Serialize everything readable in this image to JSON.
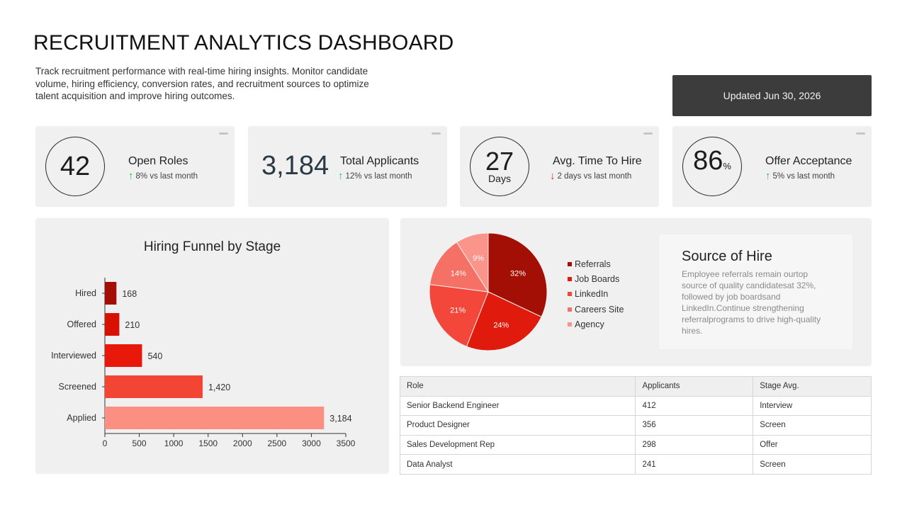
{
  "header": {
    "title": "RECRUITMENT ANALYTICS DASHBOARD",
    "subtitle": "Track recruitment performance with real-time hiring insights. Monitor candidate volume, hiring efficiency, conversion rates, and recruitment sources to optimize talent acquisition and improve hiring outcomes.",
    "updated": "Updated Jun 30, 2026"
  },
  "kpis": {
    "open_roles": {
      "value": "42",
      "label": "Open Roles",
      "delta": "8% vs last month",
      "direction": "up"
    },
    "total_applicants": {
      "value": "3,184",
      "label": "Total Applicants",
      "delta": "12% vs last month",
      "direction": "up"
    },
    "time_to_hire": {
      "value": "27",
      "unit": "Days",
      "label": "Avg. Time To Hire",
      "delta": "2 days vs last month",
      "direction": "down"
    },
    "offer_acceptance": {
      "value": "86",
      "unit": "%",
      "label": "Offer Acceptance",
      "delta": "5% vs last month",
      "direction": "up"
    }
  },
  "colors": {
    "up": "#2ebd4f",
    "down": "#e0322a"
  },
  "chart_data": [
    {
      "type": "bar",
      "orientation": "horizontal",
      "title": "Hiring Funnel by Stage",
      "categories": [
        "Hired",
        "Offered",
        "Interviewed",
        "Screened",
        "Applied"
      ],
      "values": [
        168,
        210,
        540,
        1420,
        3184
      ],
      "value_labels": [
        "168",
        "210",
        "540",
        "1,420",
        "3,184"
      ],
      "colors": [
        "#a30f04",
        "#d71205",
        "#e8180a",
        "#f24534",
        "#fb8f82"
      ],
      "xlim": [
        0,
        3500
      ],
      "xticks": [
        "0",
        "500",
        "1000",
        "1500",
        "2000",
        "2500",
        "3000",
        "3500"
      ],
      "xlabel": "",
      "ylabel": "",
      "grid": false
    },
    {
      "type": "pie",
      "categories": [
        "Referrals",
        "Job Boards",
        "LinkedIn",
        "Careers Site",
        "Agency"
      ],
      "values": [
        32,
        24,
        21,
        14,
        9
      ],
      "labels": [
        "32%",
        "24%",
        "21%",
        "14%",
        "9%"
      ],
      "colors": [
        "#a30f04",
        "#e01a0c",
        "#f2473a",
        "#f57065",
        "#fb948a"
      ],
      "legend": "right"
    }
  ],
  "source_of_hire": {
    "title": "Source of Hire",
    "text": "Employee referrals remain ourtop source of quality candidatesat 32%, followed by job boardsand LinkedIn.Continue strengthening referralprograms to drive high-quality hires."
  },
  "roles_table": {
    "headers": [
      "Role",
      "Applicants",
      "Stage Avg."
    ],
    "rows": [
      [
        "Senior Backend Engineer",
        "412",
        "Interview"
      ],
      [
        "Product Designer",
        "356",
        "Screen"
      ],
      [
        "Sales Development Rep",
        "298",
        "Offer"
      ],
      [
        "Data Analyst",
        "241",
        "Screen"
      ]
    ]
  }
}
